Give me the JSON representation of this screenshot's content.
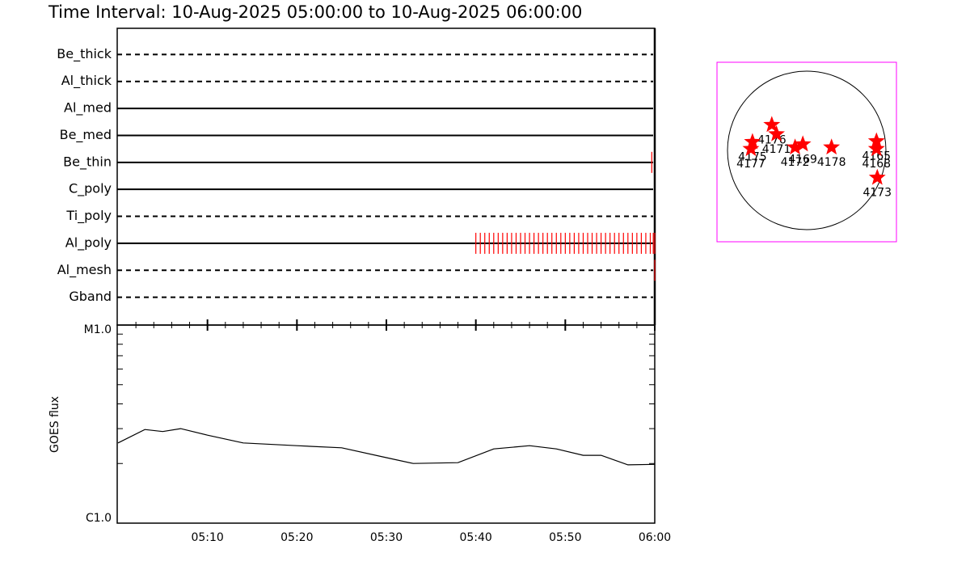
{
  "chart_data": [
    {
      "type": "timeline",
      "title": "Time Interval: 10-Aug-2025 05:00:00 to 10-Aug-2025 06:00:00",
      "categories": [
        "Be_thick",
        "Al_thick",
        "Al_med",
        "Be_med",
        "Be_thin",
        "C_poly",
        "Ti_poly",
        "Al_poly",
        "Al_mesh",
        "Gband"
      ],
      "dashed": [
        true,
        true,
        false,
        false,
        false,
        false,
        true,
        false,
        true,
        true
      ],
      "events": [
        [],
        [],
        [],
        [],
        [
          "05:59:40"
        ],
        [],
        [],
        [
          "05:40:00",
          "05:40:30",
          "05:41:00",
          "05:41:30",
          "05:42:00",
          "05:42:30",
          "05:43:00",
          "05:43:30",
          "05:44:00",
          "05:44:30",
          "05:45:00",
          "05:45:30",
          "05:46:00",
          "05:46:30",
          "05:47:00",
          "05:47:30",
          "05:48:00",
          "05:48:30",
          "05:49:00",
          "05:49:30",
          "05:50:00",
          "05:50:30",
          "05:51:00",
          "05:51:30",
          "05:52:00",
          "05:52:30",
          "05:53:00",
          "05:53:30",
          "05:54:00",
          "05:54:30",
          "05:55:00",
          "05:55:30",
          "05:56:00",
          "05:56:30",
          "05:57:00",
          "05:57:30",
          "05:58:00",
          "05:58:30",
          "05:59:00",
          "05:59:30",
          "05:59:50",
          "06:00:00"
        ],
        [
          "06:00:00"
        ],
        []
      ],
      "color": "#ff0000",
      "xlim": [
        "05:00",
        "06:00"
      ]
    },
    {
      "type": "line",
      "y_label": "GOES flux",
      "x": [
        "05:00",
        "05:03",
        "05:05",
        "05:07",
        "05:10",
        "05:14",
        "05:20",
        "05:25",
        "05:30",
        "05:33",
        "05:38",
        "05:42",
        "05:46",
        "05:49",
        "05:52",
        "05:54",
        "05:57",
        "06:00"
      ],
      "values": [
        2.54e-06,
        2.97e-06,
        2.9e-06,
        3e-06,
        2.78e-06,
        2.54e-06,
        2.46e-06,
        2.4e-06,
        2.14e-06,
        2e-06,
        2.02e-06,
        2.37e-06,
        2.46e-06,
        2.37e-06,
        2.2e-06,
        2.2e-06,
        1.97e-06,
        1.98e-06
      ],
      "color": "#000000",
      "log_scale": true,
      "xlim": [
        "05:00",
        "06:00"
      ],
      "xticks": [
        "05:10",
        "05:20",
        "05:30",
        "05:40",
        "05:50",
        "06:00"
      ],
      "ylim": [
        1e-06,
        1e-05
      ],
      "yticks": [
        {
          "value": 1e-06,
          "label": "C1.0"
        },
        {
          "value": 1e-05,
          "label": "M1.0"
        }
      ]
    },
    {
      "type": "scatter",
      "labels": [
        "4176",
        "4171",
        "4175",
        "4177",
        "4172",
        "4169",
        "4178",
        "4165",
        "4168",
        "4173"
      ],
      "x": [
        -428,
        -371,
        -665,
        -684,
        -143,
        -48,
        304,
        855,
        855,
        865
      ],
      "values": [
        333,
        219,
        124,
        38,
        57,
        95,
        57,
        133,
        38,
        -314
      ],
      "marker": "star",
      "color": "#ff0000",
      "border_color": "#ff00ff",
      "xlim": [
        -1100,
        1100
      ],
      "ylim": [
        -1100,
        1100
      ]
    }
  ]
}
